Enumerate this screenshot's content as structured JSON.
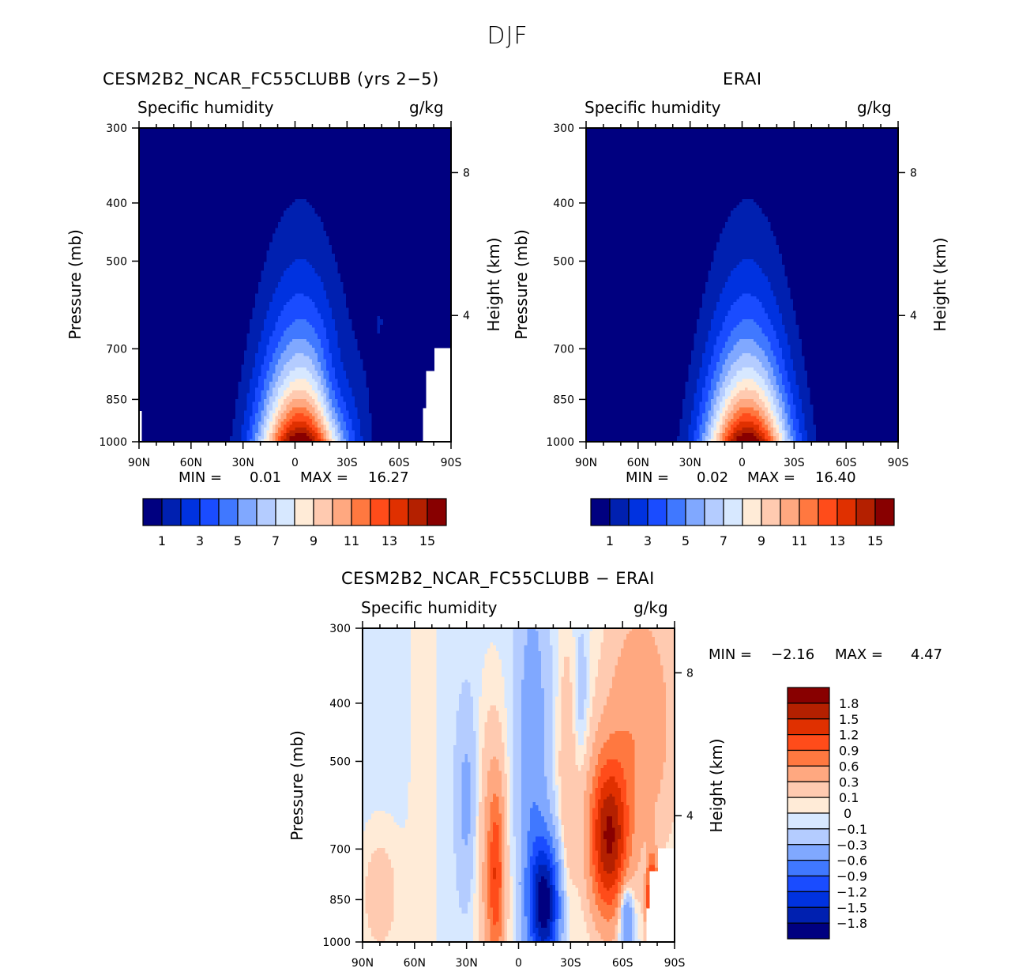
{
  "figure": {
    "title": "DJF"
  },
  "colors": [
    "#000080",
    "#0020b0",
    "#0032e0",
    "#1a4cff",
    "#4078ff",
    "#80a8ff",
    "#b4ccff",
    "#d7e8ff",
    "#ffebd7",
    "#ffcab0",
    "#ffa880",
    "#ff7840",
    "#ff4c1a",
    "#e03000",
    "#b42000",
    "#880000"
  ],
  "chart_data": [
    {
      "type": "heatmap",
      "name": "model",
      "title": "CESM2B2_NCAR_FC55CLUBB (yrs 2−5)",
      "left_label": "Specific humidity",
      "right_label": "g/kg",
      "xlabel": "",
      "ylabel": "Pressure (mb)",
      "ylabel_right": "Height (km)",
      "x_ticks": [
        "90N",
        "60N",
        "30N",
        "0",
        "30S",
        "60S",
        "90S"
      ],
      "y_ticks": [
        "300",
        "400",
        "500",
        "700",
        "850",
        "1000"
      ],
      "y_ticks_right": [
        "8",
        "4"
      ],
      "xlim": [
        "90N",
        "90S"
      ],
      "ylim": [
        1000,
        300
      ],
      "min_label": "MIN =",
      "min_value": "0.01",
      "max_label": "MAX =",
      "max_value": "16.27",
      "contour_levels": [
        1,
        2,
        3,
        4,
        5,
        6,
        7,
        8,
        9,
        10,
        11,
        12,
        13,
        14,
        15
      ],
      "colorbar_labels": [
        "1",
        "3",
        "5",
        "7",
        "9",
        "11",
        "13",
        "15"
      ],
      "colorbar_orientation": "horizontal",
      "description": "Moisture maximum ~16 g/kg near surface at equator, decreasing poleward and upward; missing data (white) over Antarctic topography below ~700 mb."
    },
    {
      "type": "heatmap",
      "name": "obs",
      "title": "ERAI",
      "left_label": "Specific humidity",
      "right_label": "g/kg",
      "ylabel": "Pressure (mb)",
      "ylabel_right": "Height (km)",
      "x_ticks": [
        "90N",
        "60N",
        "30N",
        "0",
        "30S",
        "60S",
        "90S"
      ],
      "y_ticks": [
        "300",
        "400",
        "500",
        "700",
        "850",
        "1000"
      ],
      "y_ticks_right": [
        "8",
        "4"
      ],
      "ylim": [
        1000,
        300
      ],
      "min_label": "MIN =",
      "min_value": "0.02",
      "max_label": "MAX =",
      "max_value": "16.40",
      "contour_levels": [
        1,
        2,
        3,
        4,
        5,
        6,
        7,
        8,
        9,
        10,
        11,
        12,
        13,
        14,
        15
      ],
      "colorbar_labels": [
        "1",
        "3",
        "5",
        "7",
        "9",
        "11",
        "13",
        "15"
      ],
      "colorbar_orientation": "horizontal"
    },
    {
      "type": "heatmap",
      "name": "diff",
      "title": "CESM2B2_NCAR_FC55CLUBB − ERAI",
      "left_label": "Specific humidity",
      "right_label": "g/kg",
      "ylabel": "Pressure (mb)",
      "ylabel_right": "Height (km)",
      "x_ticks": [
        "90N",
        "60N",
        "30N",
        "0",
        "30S",
        "60S",
        "90S"
      ],
      "y_ticks": [
        "300",
        "400",
        "500",
        "700",
        "850",
        "1000"
      ],
      "y_ticks_right": [
        "8",
        "4"
      ],
      "ylim": [
        1000,
        300
      ],
      "min_label": "MIN =",
      "min_value": "−2.16",
      "max_label": "MAX =",
      "max_value": "4.47",
      "contour_levels": [
        -1.8,
        -1.5,
        -1.2,
        -0.9,
        -0.6,
        -0.3,
        -0.1,
        0,
        0.1,
        0.3,
        0.6,
        0.9,
        1.2,
        1.5,
        1.8
      ],
      "colorbar_labels": [
        "1.8",
        "1.5",
        "1.2",
        "0.9",
        "0.6",
        "0.3",
        "0.1",
        "0",
        "−0.1",
        "−0.3",
        "−0.6",
        "−0.9",
        "−1.2",
        "−1.5",
        "−1.8"
      ],
      "colorbar_orientation": "vertical"
    }
  ]
}
